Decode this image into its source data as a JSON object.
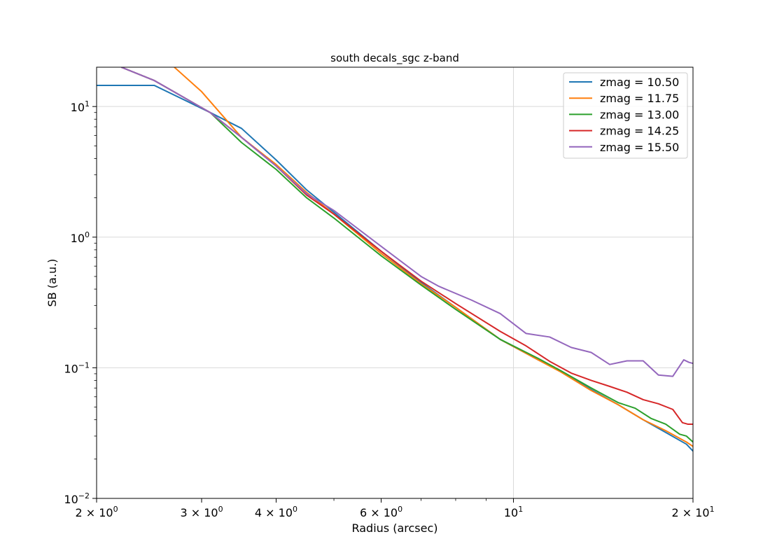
{
  "chart_data": {
    "type": "line",
    "title": "south decals_sgc z-band",
    "xlabel": "Radius (arcsec)",
    "ylabel": "SB (a.u.)",
    "xscale": "log",
    "yscale": "log",
    "xlim": [
      2,
      20
    ],
    "ylim": [
      0.01,
      20
    ],
    "grid": "major",
    "legend_position": "top-right",
    "x_ticks": [
      {
        "value": 2,
        "mant": "2",
        "exp": "0"
      },
      {
        "value": 3,
        "mant": "3",
        "exp": "0"
      },
      {
        "value": 4,
        "mant": "4",
        "exp": "0"
      },
      {
        "value": 6,
        "mant": "6",
        "exp": "0"
      },
      {
        "value": 10,
        "mant": "",
        "exp": "1"
      },
      {
        "value": 20,
        "mant": "2",
        "exp": "1"
      }
    ],
    "y_ticks": [
      {
        "value": 0.01,
        "exp": "−2"
      },
      {
        "value": 0.1,
        "exp": "−1"
      },
      {
        "value": 1,
        "exp": "0"
      },
      {
        "value": 10,
        "exp": "1"
      }
    ],
    "series": [
      {
        "name": "zmag = 10.50",
        "color": "#1f77b4",
        "points": [
          [
            2.0,
            14.5
          ],
          [
            2.5,
            14.5
          ],
          [
            3.1,
            9.0
          ],
          [
            3.5,
            6.8
          ],
          [
            4.0,
            3.9
          ],
          [
            4.5,
            2.3
          ],
          [
            5.0,
            1.55
          ],
          [
            6.0,
            0.78
          ],
          [
            7.0,
            0.45
          ],
          [
            8.0,
            0.29
          ],
          [
            9.5,
            0.165
          ],
          [
            11.0,
            0.115
          ],
          [
            12.0,
            0.094
          ],
          [
            13.5,
            0.068
          ],
          [
            15.0,
            0.052
          ],
          [
            16.5,
            0.04
          ],
          [
            18.0,
            0.032
          ],
          [
            19.5,
            0.026
          ],
          [
            20.0,
            0.023
          ]
        ]
      },
      {
        "name": "zmag = 11.75",
        "color": "#ff7f0e",
        "points": [
          [
            2.7,
            20.0
          ],
          [
            3.0,
            13.0
          ],
          [
            3.5,
            5.8
          ],
          [
            4.0,
            3.6
          ],
          [
            4.5,
            2.2
          ],
          [
            5.0,
            1.5
          ],
          [
            6.0,
            0.75
          ],
          [
            7.0,
            0.44
          ],
          [
            8.0,
            0.29
          ],
          [
            9.5,
            0.165
          ],
          [
            11.0,
            0.115
          ],
          [
            12.0,
            0.093
          ],
          [
            13.5,
            0.067
          ],
          [
            15.0,
            0.052
          ],
          [
            16.5,
            0.04
          ],
          [
            18.0,
            0.033
          ],
          [
            19.5,
            0.027
          ],
          [
            20.0,
            0.025
          ]
        ]
      },
      {
        "name": "zmag = 13.00",
        "color": "#2ca02c",
        "points": [
          [
            2.2,
            20.0
          ],
          [
            2.5,
            15.8
          ],
          [
            3.1,
            9.0
          ],
          [
            3.5,
            5.3
          ],
          [
            4.0,
            3.3
          ],
          [
            4.5,
            2.0
          ],
          [
            5.0,
            1.4
          ],
          [
            6.0,
            0.72
          ],
          [
            7.0,
            0.43
          ],
          [
            8.0,
            0.28
          ],
          [
            9.5,
            0.165
          ],
          [
            11.0,
            0.118
          ],
          [
            12.0,
            0.095
          ],
          [
            13.5,
            0.07
          ],
          [
            15.0,
            0.054
          ],
          [
            16.0,
            0.049
          ],
          [
            17.0,
            0.041
          ],
          [
            18.0,
            0.037
          ],
          [
            19.0,
            0.031
          ],
          [
            19.5,
            0.03
          ],
          [
            20.0,
            0.027
          ]
        ]
      },
      {
        "name": "zmag = 14.25",
        "color": "#d62728",
        "points": [
          [
            2.2,
            20.0
          ],
          [
            2.5,
            15.8
          ],
          [
            3.1,
            9.0
          ],
          [
            3.5,
            5.8
          ],
          [
            4.0,
            3.5
          ],
          [
            4.5,
            2.1
          ],
          [
            5.0,
            1.5
          ],
          [
            6.0,
            0.78
          ],
          [
            7.0,
            0.46
          ],
          [
            8.0,
            0.31
          ],
          [
            9.5,
            0.19
          ],
          [
            10.5,
            0.147
          ],
          [
            11.5,
            0.112
          ],
          [
            12.5,
            0.091
          ],
          [
            13.5,
            0.08
          ],
          [
            14.5,
            0.072
          ],
          [
            15.5,
            0.065
          ],
          [
            16.5,
            0.057
          ],
          [
            17.5,
            0.053
          ],
          [
            18.5,
            0.048
          ],
          [
            19.2,
            0.038
          ],
          [
            19.6,
            0.037
          ],
          [
            20.0,
            0.037
          ]
        ]
      },
      {
        "name": "zmag = 15.50",
        "color": "#9467bd",
        "points": [
          [
            2.2,
            20.0
          ],
          [
            2.5,
            15.8
          ],
          [
            3.1,
            9.0
          ],
          [
            3.5,
            5.8
          ],
          [
            4.0,
            3.5
          ],
          [
            4.5,
            2.15
          ],
          [
            5.0,
            1.6
          ],
          [
            6.0,
            0.85
          ],
          [
            7.0,
            0.5
          ],
          [
            7.5,
            0.42
          ],
          [
            8.5,
            0.33
          ],
          [
            9.5,
            0.26
          ],
          [
            10.5,
            0.183
          ],
          [
            11.5,
            0.172
          ],
          [
            12.5,
            0.143
          ],
          [
            13.5,
            0.131
          ],
          [
            14.5,
            0.106
          ],
          [
            15.5,
            0.113
          ],
          [
            16.5,
            0.113
          ],
          [
            17.5,
            0.088
          ],
          [
            18.5,
            0.086
          ],
          [
            19.3,
            0.115
          ],
          [
            19.7,
            0.11
          ],
          [
            20.0,
            0.108
          ]
        ]
      }
    ]
  }
}
